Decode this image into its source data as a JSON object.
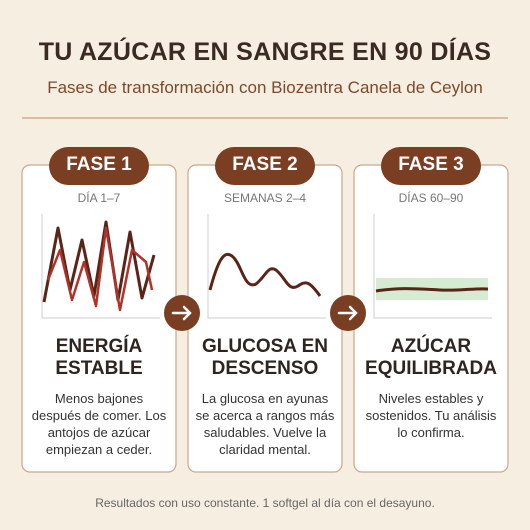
{
  "header": {
    "title": "TU AZÚCAR EN SANGRE EN 90 DÍAS",
    "subtitle": "Fases de transformación con Biozentra Canela de Ceylon"
  },
  "phases": [
    {
      "badge": "FASE 1",
      "period": "DÍA 1–7",
      "heading": "ENERGÍA ESTABLE",
      "body": "Menos bajones después de comer. Los antojos de azúcar empiezan a ceder."
    },
    {
      "badge": "FASE 2",
      "period": "SEMANAS 2–4",
      "heading": "GLUCOSA EN DESCENSO",
      "body": "La glucosa en ayunas se acerca a rangos más saludables. Vuelve la claridad mental."
    },
    {
      "badge": "FASE 3",
      "period": "DÍAS 60–90",
      "heading": "AZÚCAR EQUILIBRADA",
      "body": "Niveles estables y sostenidos. Tu análisis lo confirma."
    }
  ],
  "footer": "Resultados con uso constante. 1 softgel al día con el desayuno."
}
